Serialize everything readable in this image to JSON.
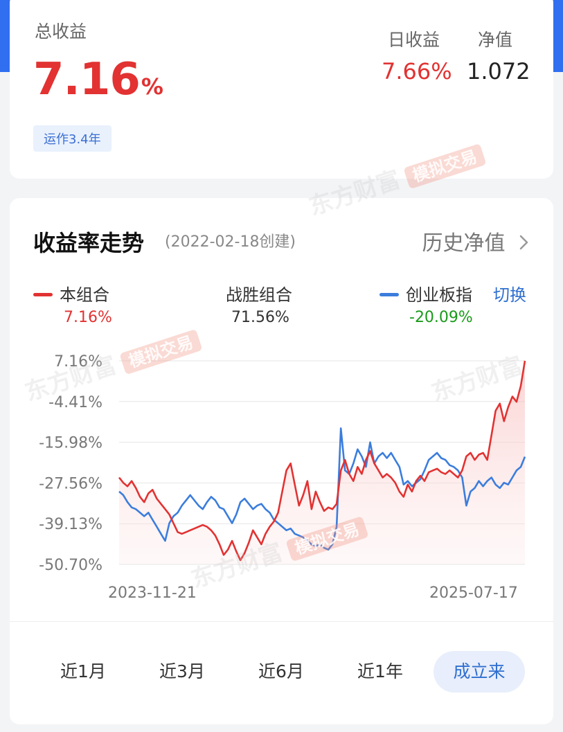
{
  "summary": {
    "total_label": "总收益",
    "total_value": "7.16",
    "total_unit": "%",
    "runtime_badge": "运作3.4年",
    "daily_label": "日收益",
    "daily_value": "7.66%",
    "nav_label": "净值",
    "nav_value": "1.072"
  },
  "trend": {
    "title": "收益率走势",
    "created": "(2022-02-18创建)",
    "history_link": "历史净值",
    "switch_label": "切换",
    "legend": [
      {
        "name": "本组合",
        "value": "7.16%",
        "color": "#e23232",
        "value_color": "#e23232"
      },
      {
        "name": "战胜组合",
        "value": "71.56%",
        "color": "",
        "value_color": "#333333"
      },
      {
        "name": "创业板指",
        "value": "-20.09%",
        "color": "#3b7ddd",
        "value_color": "#1a9a1a"
      }
    ]
  },
  "chart_data": {
    "type": "line",
    "x_start": "2023-11-21",
    "x_end": "2025-07-17",
    "y_ticks": [
      "7.16%",
      "-4.41%",
      "-15.98%",
      "-27.56%",
      "-39.13%",
      "-50.70%"
    ],
    "ylim": [
      -50.7,
      7.16
    ],
    "series": [
      {
        "name": "本组合",
        "color": "#e23232",
        "values": [
          -26.0,
          -27.5,
          -28.5,
          -27.0,
          -29.0,
          -31.5,
          -33.0,
          -30.5,
          -29.5,
          -32.0,
          -33.5,
          -35.0,
          -36.5,
          -39.0,
          -41.5,
          -42.0,
          -41.5,
          -41.0,
          -40.5,
          -40.0,
          -39.5,
          -40.0,
          -41.0,
          -42.5,
          -45.0,
          -48.0,
          -46.5,
          -44.0,
          -47.0,
          -49.5,
          -47.5,
          -44.5,
          -41.0,
          -43.0,
          -45.0,
          -42.0,
          -40.0,
          -38.5,
          -36.0,
          -30.0,
          -24.0,
          -22.0,
          -28.0,
          -34.0,
          -31.0,
          -27.0,
          -35.0,
          -30.0,
          -33.0,
          -35.5,
          -34.5,
          -35.0,
          -33.5,
          -24.0,
          -21.0,
          -25.0,
          -27.0,
          -23.0,
          -25.0,
          -21.0,
          -18.5,
          -22.0,
          -24.0,
          -26.0,
          -25.0,
          -26.0,
          -27.5,
          -30.0,
          -31.5,
          -28.0,
          -30.0,
          -27.0,
          -25.5,
          -27.0,
          -24.5,
          -24.0,
          -23.5,
          -24.5,
          -25.0,
          -24.0,
          -25.0,
          -26.0,
          -24.0,
          -20.0,
          -19.0,
          -21.0,
          -19.5,
          -19.0,
          -21.0,
          -14.0,
          -7.0,
          -5.0,
          -10.0,
          -6.0,
          -3.0,
          -4.5,
          0.0,
          7.16
        ]
      },
      {
        "name": "创业板指",
        "color": "#3b7ddd",
        "values": [
          -30.0,
          -31.0,
          -33.0,
          -34.5,
          -35.0,
          -36.0,
          -37.0,
          -36.0,
          -38.0,
          -40.0,
          -42.0,
          -44.0,
          -39.0,
          -37.0,
          -36.0,
          -34.0,
          -32.5,
          -31.0,
          -32.5,
          -34.0,
          -35.0,
          -33.0,
          -31.5,
          -32.5,
          -34.5,
          -35.0,
          -37.0,
          -39.0,
          -36.5,
          -33.0,
          -32.0,
          -33.5,
          -35.0,
          -34.0,
          -33.5,
          -35.0,
          -36.0,
          -38.0,
          -39.0,
          -40.0,
          -41.0,
          -40.5,
          -42.0,
          -42.5,
          -43.0,
          -44.0,
          -45.0,
          -45.5,
          -45.0,
          -46.0,
          -46.5,
          -45.0,
          -40.0,
          -12.0,
          -24.0,
          -25.0,
          -22.0,
          -18.0,
          -20.0,
          -23.0,
          -16.0,
          -22.0,
          -20.0,
          -19.0,
          -20.5,
          -19.0,
          -21.0,
          -23.0,
          -28.0,
          -27.0,
          -28.5,
          -27.5,
          -26.5,
          -24.0,
          -21.0,
          -20.0,
          -19.0,
          -20.5,
          -21.0,
          -22.5,
          -23.0,
          -24.0,
          -26.0,
          -34.0,
          -30.0,
          -29.0,
          -27.0,
          -28.5,
          -27.0,
          -26.0,
          -28.0,
          -29.0,
          -27.5,
          -28.0,
          -26.0,
          -24.0,
          -23.0,
          -20.09
        ]
      }
    ]
  },
  "periods": [
    {
      "label": "近1月",
      "active": false
    },
    {
      "label": "近3月",
      "active": false
    },
    {
      "label": "近6月",
      "active": false
    },
    {
      "label": "近1年",
      "active": false
    },
    {
      "label": "成立来",
      "active": true
    }
  ],
  "watermark": {
    "brand": "东方财富",
    "tag": "模拟交易"
  }
}
